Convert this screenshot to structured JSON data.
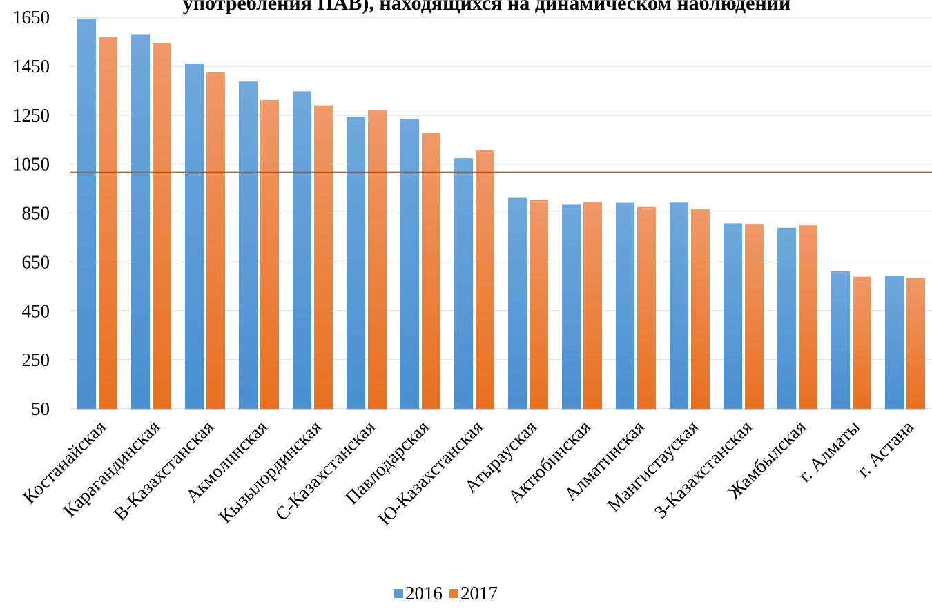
{
  "chart_data": {
    "type": "bar",
    "title": "употребления ПАВ), находящихся на динамическом наблюдении",
    "xlabel": "",
    "ylabel": "",
    "ylim": [
      50,
      1650
    ],
    "yticks": [
      50,
      250,
      450,
      650,
      850,
      1050,
      1250,
      1450,
      1650
    ],
    "grid": true,
    "legend_position": "bottom",
    "reference_line": {
      "value": 1017,
      "color": "#c55a11"
    },
    "categories": [
      "Костанайская",
      "Карагандинская",
      "В-Казахстанская",
      "Акмолинская",
      "Кызылординская",
      "С-Казахстанская",
      "Павлодарская",
      "Ю-Казахстанская",
      "Атырауская",
      "Актюбинская",
      "Алматинская",
      "Мангистауская",
      "З-Казахстанская",
      "Жамбылская",
      "г. Алматы",
      "г. Астана"
    ],
    "series": [
      {
        "name": "2016",
        "color": "#5b9bd5",
        "values": [
          1645,
          1581,
          1461,
          1387,
          1347,
          1243,
          1235,
          1074,
          912,
          884,
          892,
          893,
          808,
          790,
          612,
          593
        ]
      },
      {
        "name": "2017",
        "color": "#ed7d31",
        "values": [
          1571,
          1545,
          1425,
          1312,
          1290,
          1269,
          1178,
          1108,
          903,
          895,
          875,
          866,
          803,
          800,
          590,
          585
        ]
      }
    ]
  }
}
